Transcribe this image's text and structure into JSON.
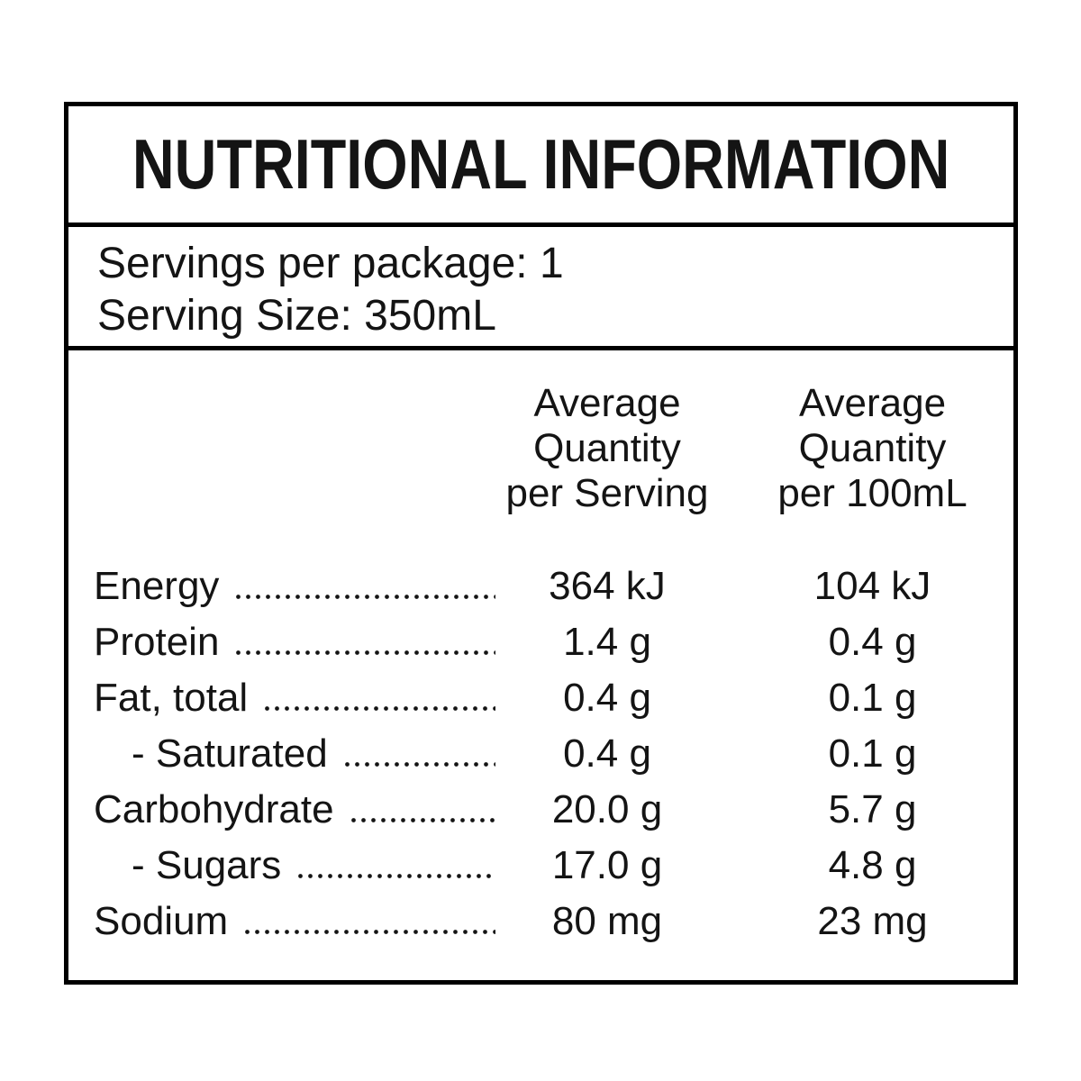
{
  "colors": {
    "background": "#ffffff",
    "border": "#000000",
    "text": "#141414"
  },
  "title": "NUTRITIONAL INFORMATION",
  "servings": {
    "per_package": "Servings per package: 1",
    "serving_size": "Serving Size: 350mL"
  },
  "table": {
    "columns": [
      {
        "name": "Average Quantity per Serving",
        "lines": [
          "Average",
          "Quantity",
          "per Serving"
        ]
      },
      {
        "name": "Average Quantity per 100mL",
        "lines": [
          "Average",
          "Quantity",
          "per 100mL"
        ]
      }
    ],
    "rows": [
      {
        "label": "Energy",
        "indent": false,
        "per_serving": "364 kJ",
        "per_100ml": "104 kJ"
      },
      {
        "label": "Protein",
        "indent": false,
        "per_serving": "1.4 g",
        "per_100ml": "0.4 g"
      },
      {
        "label": "Fat, total",
        "indent": false,
        "per_serving": "0.4 g",
        "per_100ml": "0.1 g"
      },
      {
        "label": "- Saturated",
        "indent": true,
        "per_serving": "0.4 g",
        "per_100ml": "0.1 g"
      },
      {
        "label": "Carbohydrate",
        "indent": false,
        "per_serving": "20.0 g",
        "per_100ml": "5.7 g"
      },
      {
        "label": "- Sugars",
        "indent": true,
        "per_serving": "17.0 g",
        "per_100ml": "4.8 g"
      },
      {
        "label": "Sodium",
        "indent": false,
        "per_serving": "80 mg",
        "per_100ml": "23 mg"
      }
    ]
  }
}
